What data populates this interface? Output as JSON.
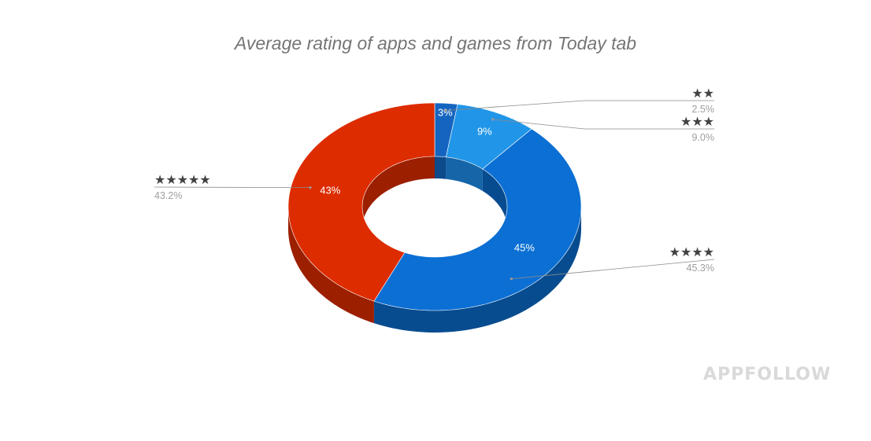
{
  "chart_data": {
    "type": "pie",
    "variant": "3d-donut",
    "title": "Average rating of apps and games from Today tab",
    "slices": [
      {
        "name": "★★",
        "label": "★★",
        "value": 2.5,
        "slice_label": "3%",
        "legend_value": "2.5%",
        "color": "#1565c0",
        "side_color": "#0d4a8c",
        "legend_side": "right"
      },
      {
        "name": "★★★",
        "label": "★★★",
        "value": 9.0,
        "slice_label": "9%",
        "legend_value": "9.0%",
        "color": "#2196e8",
        "side_color": "#1565a8",
        "legend_side": "right"
      },
      {
        "name": "★★★★",
        "label": "★★★★",
        "value": 45.3,
        "slice_label": "45%",
        "legend_value": "45.3%",
        "color": "#0b6fd4",
        "side_color": "#084c90",
        "legend_side": "right"
      },
      {
        "name": "★★★★★",
        "label": "★★★★★",
        "value": 43.2,
        "slice_label": "43%",
        "legend_value": "43.2%",
        "color": "#dd2c00",
        "side_color": "#9c1f00",
        "legend_side": "left"
      }
    ]
  },
  "watermark": "APPFOLLOW"
}
